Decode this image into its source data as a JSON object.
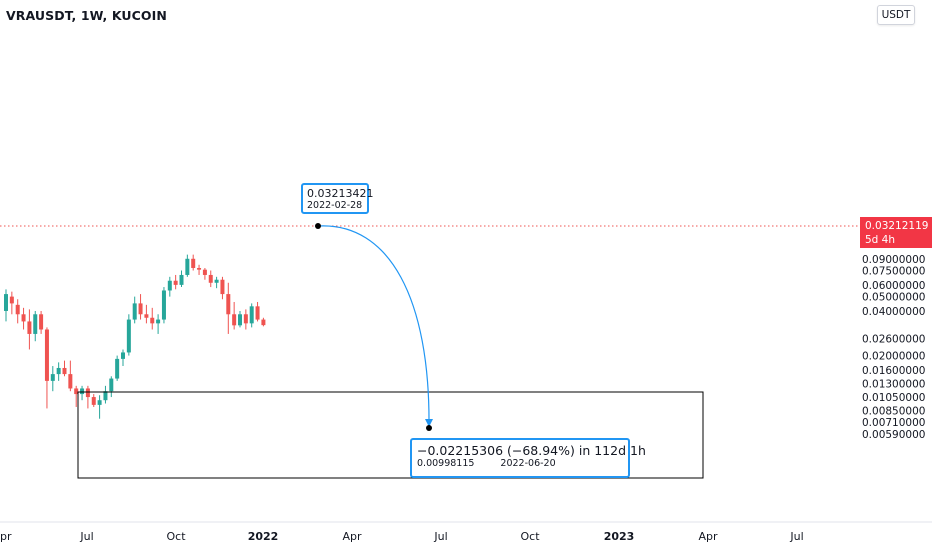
{
  "header": {
    "symbol_line": "VRAUSDT, 1W, KUCOIN",
    "currency": "USDT"
  },
  "last_price": {
    "value": "0.03212119",
    "countdown": "5d 4h"
  },
  "projection": {
    "start_value": "0.03213421",
    "start_date": "2022-02-28",
    "change_text": "−0.02215306 (−68.94%) in 112d 1h",
    "target_value": "0.00998115",
    "target_date": "2022-06-20"
  },
  "colors": {
    "up": "#26a69a",
    "down": "#ef5350",
    "accent": "#2196f3",
    "price_tag": "#f23645"
  },
  "chart_data": {
    "type": "candlestick",
    "y_scale": "log",
    "ylim": [
      0.0059,
      0.112
    ],
    "y_ticks": [
      0.0059,
      0.0071,
      0.0085,
      0.0105,
      0.013,
      0.016,
      0.02,
      0.026,
      0.04,
      0.05,
      0.06,
      0.075,
      0.09
    ],
    "y_tick_labels": [
      "0.00590000",
      "0.00710000",
      "0.00850000",
      "0.01050000",
      "0.01300000",
      "0.01600000",
      "0.02000000",
      "0.02600000",
      "0.04000000",
      "0.05000000",
      "0.06000000",
      "0.07500000",
      "0.09000000"
    ],
    "x_tick_labels": [
      "Apr",
      "Jul",
      "Oct",
      "2022",
      "Apr",
      "Jul",
      "Oct",
      "2023",
      "Apr",
      "Jul"
    ],
    "x_ticks_bold": [
      "2022",
      "2023"
    ],
    "candles": [
      {
        "o": 0.04,
        "h": 0.056,
        "l": 0.034,
        "c": 0.052
      },
      {
        "o": 0.05,
        "h": 0.054,
        "l": 0.038,
        "c": 0.045
      },
      {
        "o": 0.044,
        "h": 0.048,
        "l": 0.033,
        "c": 0.038
      },
      {
        "o": 0.038,
        "h": 0.042,
        "l": 0.03,
        "c": 0.034
      },
      {
        "o": 0.034,
        "h": 0.041,
        "l": 0.022,
        "c": 0.028
      },
      {
        "o": 0.028,
        "h": 0.04,
        "l": 0.025,
        "c": 0.038
      },
      {
        "o": 0.038,
        "h": 0.04,
        "l": 0.028,
        "c": 0.03
      },
      {
        "o": 0.03,
        "h": 0.031,
        "l": 0.0088,
        "c": 0.0135
      },
      {
        "o": 0.0135,
        "h": 0.017,
        "l": 0.0115,
        "c": 0.015
      },
      {
        "o": 0.015,
        "h": 0.018,
        "l": 0.0135,
        "c": 0.0165
      },
      {
        "o": 0.0165,
        "h": 0.0185,
        "l": 0.0145,
        "c": 0.015
      },
      {
        "o": 0.015,
        "h": 0.0185,
        "l": 0.0115,
        "c": 0.012
      },
      {
        "o": 0.012,
        "h": 0.0125,
        "l": 0.009,
        "c": 0.011
      },
      {
        "o": 0.011,
        "h": 0.0125,
        "l": 0.01,
        "c": 0.012
      },
      {
        "o": 0.012,
        "h": 0.0125,
        "l": 0.0088,
        "c": 0.0105
      },
      {
        "o": 0.0105,
        "h": 0.011,
        "l": 0.009,
        "c": 0.0093
      },
      {
        "o": 0.0093,
        "h": 0.0108,
        "l": 0.0075,
        "c": 0.01
      },
      {
        "o": 0.01,
        "h": 0.0125,
        "l": 0.0095,
        "c": 0.0115
      },
      {
        "o": 0.0115,
        "h": 0.0145,
        "l": 0.0105,
        "c": 0.014
      },
      {
        "o": 0.014,
        "h": 0.02,
        "l": 0.0135,
        "c": 0.019
      },
      {
        "o": 0.019,
        "h": 0.022,
        "l": 0.017,
        "c": 0.021
      },
      {
        "o": 0.021,
        "h": 0.038,
        "l": 0.02,
        "c": 0.035
      },
      {
        "o": 0.035,
        "h": 0.05,
        "l": 0.033,
        "c": 0.045
      },
      {
        "o": 0.045,
        "h": 0.052,
        "l": 0.035,
        "c": 0.038
      },
      {
        "o": 0.038,
        "h": 0.044,
        "l": 0.033,
        "c": 0.036
      },
      {
        "o": 0.036,
        "h": 0.042,
        "l": 0.03,
        "c": 0.033
      },
      {
        "o": 0.033,
        "h": 0.038,
        "l": 0.028,
        "c": 0.035
      },
      {
        "o": 0.035,
        "h": 0.058,
        "l": 0.033,
        "c": 0.055
      },
      {
        "o": 0.055,
        "h": 0.068,
        "l": 0.05,
        "c": 0.064
      },
      {
        "o": 0.064,
        "h": 0.07,
        "l": 0.056,
        "c": 0.06
      },
      {
        "o": 0.06,
        "h": 0.075,
        "l": 0.058,
        "c": 0.07
      },
      {
        "o": 0.07,
        "h": 0.096,
        "l": 0.068,
        "c": 0.09
      },
      {
        "o": 0.09,
        "h": 0.096,
        "l": 0.075,
        "c": 0.078
      },
      {
        "o": 0.078,
        "h": 0.082,
        "l": 0.07,
        "c": 0.076
      },
      {
        "o": 0.076,
        "h": 0.078,
        "l": 0.065,
        "c": 0.07
      },
      {
        "o": 0.07,
        "h": 0.075,
        "l": 0.058,
        "c": 0.062
      },
      {
        "o": 0.062,
        "h": 0.068,
        "l": 0.057,
        "c": 0.065
      },
      {
        "o": 0.065,
        "h": 0.068,
        "l": 0.048,
        "c": 0.052
      },
      {
        "o": 0.052,
        "h": 0.062,
        "l": 0.028,
        "c": 0.038
      },
      {
        "o": 0.038,
        "h": 0.046,
        "l": 0.03,
        "c": 0.032
      },
      {
        "o": 0.032,
        "h": 0.04,
        "l": 0.031,
        "c": 0.038
      },
      {
        "o": 0.038,
        "h": 0.041,
        "l": 0.03,
        "c": 0.033
      },
      {
        "o": 0.033,
        "h": 0.045,
        "l": 0.031,
        "c": 0.043
      },
      {
        "o": 0.043,
        "h": 0.046,
        "l": 0.034,
        "c": 0.035
      },
      {
        "o": 0.035,
        "h": 0.036,
        "l": 0.0315,
        "c": 0.0321
      }
    ]
  }
}
